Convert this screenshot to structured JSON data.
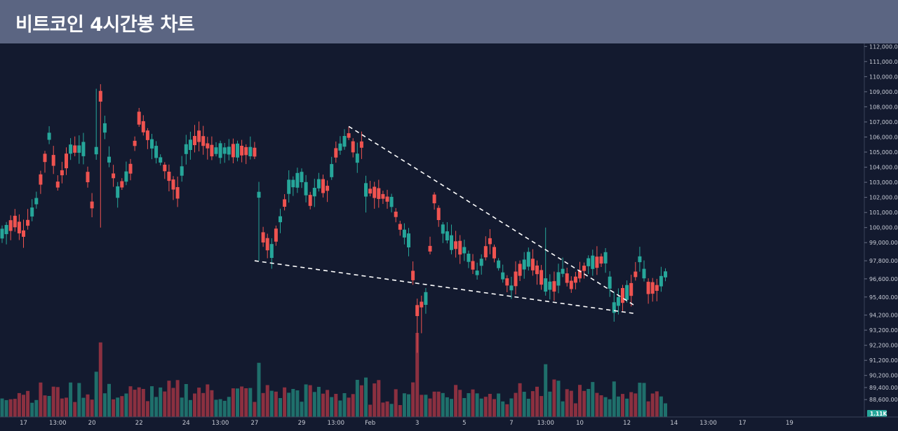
{
  "page_title": "비트코인 4시간봉 차트",
  "colors": {
    "background": "#131a2f",
    "header": "#5b6582",
    "up": "#26a69a",
    "down": "#ef5350",
    "volume_up": "#1f6f6b",
    "volume_down": "#8b3040",
    "axis_text": "#c8ccd6",
    "trendline": "#ffffff",
    "volume_badge": "#26a69a"
  },
  "chart_data": {
    "type": "candlestick",
    "x_axis": {
      "tick_labels": [
        {
          "label": "17",
          "bar": 5
        },
        {
          "label": "13:00",
          "bar": 13
        },
        {
          "label": "20",
          "bar": 21
        },
        {
          "label": "22",
          "bar": 32
        },
        {
          "label": "24",
          "bar": 43
        },
        {
          "label": "13:00",
          "bar": 51
        },
        {
          "label": "27",
          "bar": 59
        },
        {
          "label": "29",
          "bar": 70
        },
        {
          "label": "13:00",
          "bar": 78
        },
        {
          "label": "Feb",
          "bar": 86
        },
        {
          "label": "3",
          "bar": 97
        },
        {
          "label": "5",
          "bar": 108
        },
        {
          "label": "7",
          "bar": 119
        },
        {
          "label": "13:00",
          "bar": 127
        },
        {
          "label": "10",
          "bar": 135
        },
        {
          "label": "12",
          "bar": 146
        },
        {
          "label": "14",
          "bar": 157
        },
        {
          "label": "13:00",
          "bar": 165
        },
        {
          "label": "17",
          "bar": 173
        },
        {
          "label": "19",
          "bar": 184
        }
      ]
    },
    "y_axis": {
      "range": [
        87820,
        112200
      ],
      "tick_labels": [
        "112,000.00",
        "111,000.00",
        "110,000.00",
        "109,000.00",
        "108,000.00",
        "107,000.00",
        "106,000.00",
        "105,000.00",
        "104,000.00",
        "103,000.00",
        "102,000.00",
        "101,000.00",
        "100,000.00",
        "99,000.00",
        "97,800.00",
        "96,600.00",
        "95,400.00",
        "94,200.00",
        "93,200.00",
        "92,200.00",
        "91,200.00",
        "90,200.00",
        "89,400.00",
        "88,600.00"
      ],
      "tick_values": [
        112000,
        111000,
        110000,
        109000,
        108000,
        107000,
        106000,
        105000,
        104000,
        103000,
        102000,
        101000,
        100000,
        99000,
        97800,
        96600,
        95400,
        94200,
        93200,
        92200,
        91200,
        90200,
        89400,
        88600
      ]
    },
    "volume_badge": "1.11K",
    "trendlines": [
      {
        "name": "upper",
        "from": {
          "bar": 81,
          "price": 106700
        },
        "to": {
          "bar": 148,
          "price": 94800
        }
      },
      {
        "name": "lower",
        "from": {
          "bar": 59,
          "price": 97800
        },
        "to": {
          "bar": 148,
          "price": 94300
        }
      }
    ],
    "anchors": [
      [
        0,
        99200,
        100000
      ],
      [
        3,
        100100,
        100700
      ],
      [
        5,
        99400,
        99800
      ],
      [
        8,
        101500,
        102000
      ],
      [
        11,
        105800,
        106300
      ],
      [
        13,
        102500,
        103200
      ],
      [
        16,
        104800,
        105600
      ],
      [
        19,
        104800,
        105600
      ],
      [
        21,
        101200,
        101800
      ],
      [
        23,
        108200,
        109200
      ],
      [
        25,
        104000,
        105000
      ],
      [
        27,
        102000,
        102700
      ],
      [
        30,
        103600,
        104200
      ],
      [
        32,
        107000,
        107500
      ],
      [
        35,
        105300,
        105800
      ],
      [
        38,
        103600,
        104300
      ],
      [
        41,
        102000,
        102600
      ],
      [
        43,
        104800,
        105600
      ],
      [
        46,
        105800,
        106300
      ],
      [
        49,
        104800,
        105400
      ],
      [
        53,
        104800,
        105400
      ],
      [
        56,
        104800,
        105400
      ],
      [
        59,
        104700,
        105300
      ],
      [
        61,
        99000,
        99700
      ],
      [
        63,
        98100,
        98800
      ],
      [
        65,
        100200,
        100900
      ],
      [
        67,
        102400,
        103000
      ],
      [
        70,
        103100,
        103600
      ],
      [
        72,
        101500,
        102100
      ],
      [
        74,
        102600,
        103200
      ],
      [
        76,
        102300,
        102900
      ],
      [
        78,
        104600,
        105300
      ],
      [
        81,
        105800,
        106400
      ],
      [
        83,
        104300,
        104900
      ],
      [
        84,
        105300,
        105700
      ],
      [
        85,
        102200,
        102800
      ],
      [
        88,
        102000,
        102500
      ],
      [
        91,
        101400,
        102000
      ],
      [
        93,
        99700,
        100400
      ],
      [
        95,
        98800,
        99500
      ],
      [
        97,
        94200,
        94800
      ],
      [
        99,
        95000,
        95600
      ],
      [
        101,
        101600,
        102200
      ],
      [
        103,
        99600,
        100200
      ],
      [
        105,
        98700,
        99300
      ],
      [
        108,
        98200,
        98800
      ],
      [
        111,
        96700,
        97300
      ],
      [
        114,
        98800,
        99400
      ],
      [
        117,
        96500,
        97100
      ],
      [
        119,
        95700,
        96300
      ],
      [
        121,
        96900,
        97500
      ],
      [
        123,
        97600,
        98200
      ],
      [
        125,
        96900,
        97500
      ],
      [
        127,
        95900,
        96500
      ],
      [
        129,
        95800,
        96400
      ],
      [
        131,
        96800,
        97400
      ],
      [
        133,
        95900,
        96500
      ],
      [
        135,
        96600,
        97200
      ],
      [
        137,
        97400,
        98000
      ],
      [
        139,
        97400,
        98000
      ],
      [
        141,
        97700,
        98300
      ],
      [
        143,
        94400,
        95000
      ],
      [
        145,
        95200,
        95800
      ],
      [
        147,
        95600,
        96200
      ],
      [
        149,
        97600,
        98200
      ],
      [
        151,
        95700,
        96300
      ],
      [
        153,
        95700,
        96300
      ],
      [
        155,
        96700,
        97100
      ]
    ]
  }
}
